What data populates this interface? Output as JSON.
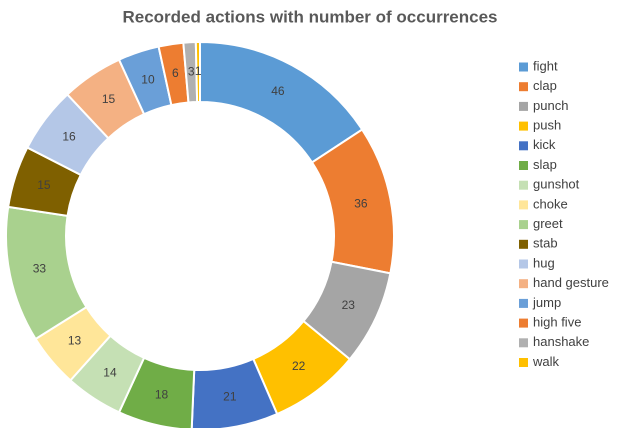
{
  "chart_data": {
    "type": "donut",
    "title": "Recorded actions with number of occurrences",
    "categories": [
      "fight",
      "clap",
      "punch",
      "push",
      "kick",
      "slap",
      "gunshot",
      "choke",
      "greet",
      "stab",
      "hug",
      "hand gesture",
      "jump",
      "high five",
      "hanshake",
      "walk"
    ],
    "values": [
      46,
      36,
      23,
      22,
      21,
      18,
      14,
      13,
      33,
      15,
      16,
      15,
      10,
      6,
      3,
      1
    ],
    "colors": [
      "#5b9bd5",
      "#ed7d31",
      "#a5a5a5",
      "#ffc000",
      "#4472c4",
      "#70ad47",
      "#c5e0b4",
      "#ffe699",
      "#a9d18e",
      "#7f6000",
      "#b4c7e7",
      "#f4b183",
      "#6a9fd8",
      "#ed7d31",
      "#b0b0b0",
      "#ffc000"
    ],
    "legend": "right"
  }
}
